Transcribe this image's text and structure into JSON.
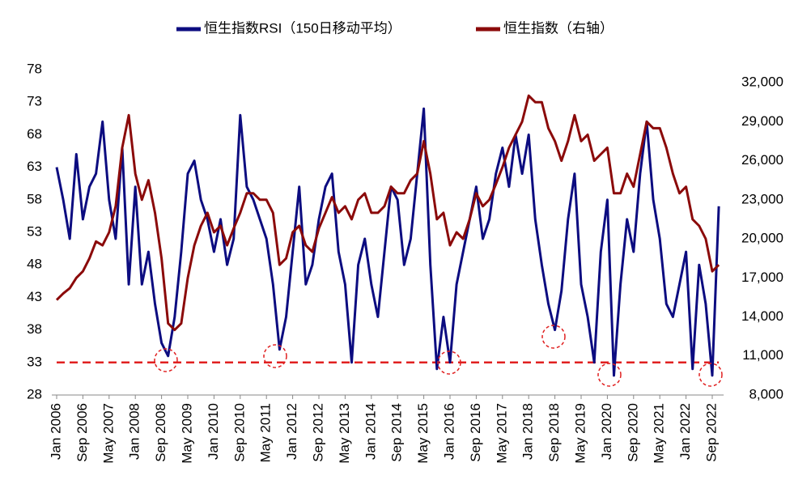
{
  "chart_data": {
    "type": "line",
    "categories": [
      "Jan 2006",
      null,
      null,
      null,
      "Sep 2006",
      null,
      null,
      null,
      "May 2007",
      null,
      null,
      null,
      "Jan 2008",
      null,
      null,
      null,
      "Sep 2008",
      null,
      null,
      null,
      "May 2009",
      null,
      null,
      null,
      "Jan 2010",
      null,
      null,
      null,
      "Sep 2010",
      null,
      null,
      null,
      "May 2011",
      null,
      null,
      null,
      "Jan 2012",
      null,
      null,
      null,
      "Sep 2012",
      null,
      null,
      null,
      "May 2013",
      null,
      null,
      null,
      "Jan 2014",
      null,
      null,
      null,
      "Sep 2014",
      null,
      null,
      null,
      "May 2015",
      null,
      null,
      null,
      "Jan 2016",
      null,
      null,
      null,
      "Sep 2016",
      null,
      null,
      null,
      "May 2017",
      null,
      null,
      null,
      "Jan 2018",
      null,
      null,
      null,
      "Sep 2018",
      null,
      null,
      null,
      "May 2019",
      null,
      null,
      null,
      "Jan 2020",
      null,
      null,
      null,
      "Sep 2020",
      null,
      null,
      null,
      "May 2021",
      null,
      null,
      null,
      "Jan 2022",
      null,
      null,
      null,
      "Sep 2022",
      null
    ],
    "series": [
      {
        "name": "恒生指数RSI（150日移动平均）",
        "color": "#0c0c80",
        "values": [
          63,
          58,
          52,
          65,
          55,
          60,
          62,
          70,
          58,
          52,
          66,
          45,
          60,
          45,
          50,
          42,
          36,
          34,
          40,
          50,
          62,
          64,
          58,
          55,
          50,
          55,
          48,
          52,
          71,
          60,
          58,
          55,
          52,
          45,
          35,
          40,
          50,
          60,
          45,
          48,
          55,
          60,
          62,
          50,
          45,
          33,
          48,
          52,
          45,
          40,
          50,
          60,
          58,
          48,
          52,
          62,
          72,
          48,
          32,
          40,
          33,
          45,
          50,
          55,
          60,
          52,
          55,
          62,
          66,
          60,
          68,
          62,
          68,
          55,
          48,
          42,
          38,
          44,
          55,
          62,
          45,
          40,
          33,
          50,
          58,
          31,
          45,
          55,
          50,
          62,
          70,
          58,
          52,
          42,
          40,
          45,
          50,
          32,
          48,
          42,
          31,
          57
        ]
      },
      {
        "name": "恒生指数（右轴）",
        "color": "#8b0a0a",
        "axis": "y2",
        "values": [
          15300,
          15800,
          16200,
          17000,
          17500,
          18500,
          19800,
          19500,
          20500,
          22500,
          27000,
          29500,
          25000,
          23000,
          24500,
          22000,
          18500,
          13500,
          13000,
          13500,
          17000,
          19500,
          21000,
          22000,
          20500,
          21000,
          19500,
          20800,
          22000,
          23500,
          23500,
          23000,
          23000,
          22000,
          18000,
          18500,
          20500,
          21000,
          19500,
          19000,
          20800,
          22000,
          23200,
          22000,
          22500,
          21500,
          23000,
          23500,
          22000,
          22000,
          22500,
          24000,
          23500,
          23500,
          24500,
          25000,
          27500,
          25000,
          21500,
          22000,
          19500,
          20500,
          20000,
          21500,
          23500,
          22500,
          23000,
          24200,
          25500,
          27000,
          28000,
          29000,
          31000,
          30500,
          30500,
          28500,
          27500,
          26000,
          27500,
          29500,
          27500,
          28000,
          26000,
          26500,
          27000,
          23500,
          23500,
          25000,
          24000,
          26500,
          29000,
          28500,
          28500,
          27000,
          25000,
          23500,
          24000,
          21500,
          21000,
          20000,
          17500,
          18000
        ]
      }
    ],
    "ylim": [
      28,
      78
    ],
    "yticks": [
      28,
      33,
      38,
      43,
      48,
      53,
      58,
      63,
      68,
      73,
      78
    ],
    "y2lim": [
      8000,
      33000
    ],
    "y2ticks": [
      {
        "value": 8000,
        "label": "8,000"
      },
      {
        "value": 11000,
        "label": "11,000"
      },
      {
        "value": 14000,
        "label": "14,000"
      },
      {
        "value": 17000,
        "label": "17,000"
      },
      {
        "value": 20000,
        "label": "20,000"
      },
      {
        "value": 23000,
        "label": "23,000"
      },
      {
        "value": 26000,
        "label": "26,000"
      },
      {
        "value": 29000,
        "label": "29,000"
      },
      {
        "value": 32000,
        "label": "32,000"
      }
    ],
    "reference_line": 33
  }
}
